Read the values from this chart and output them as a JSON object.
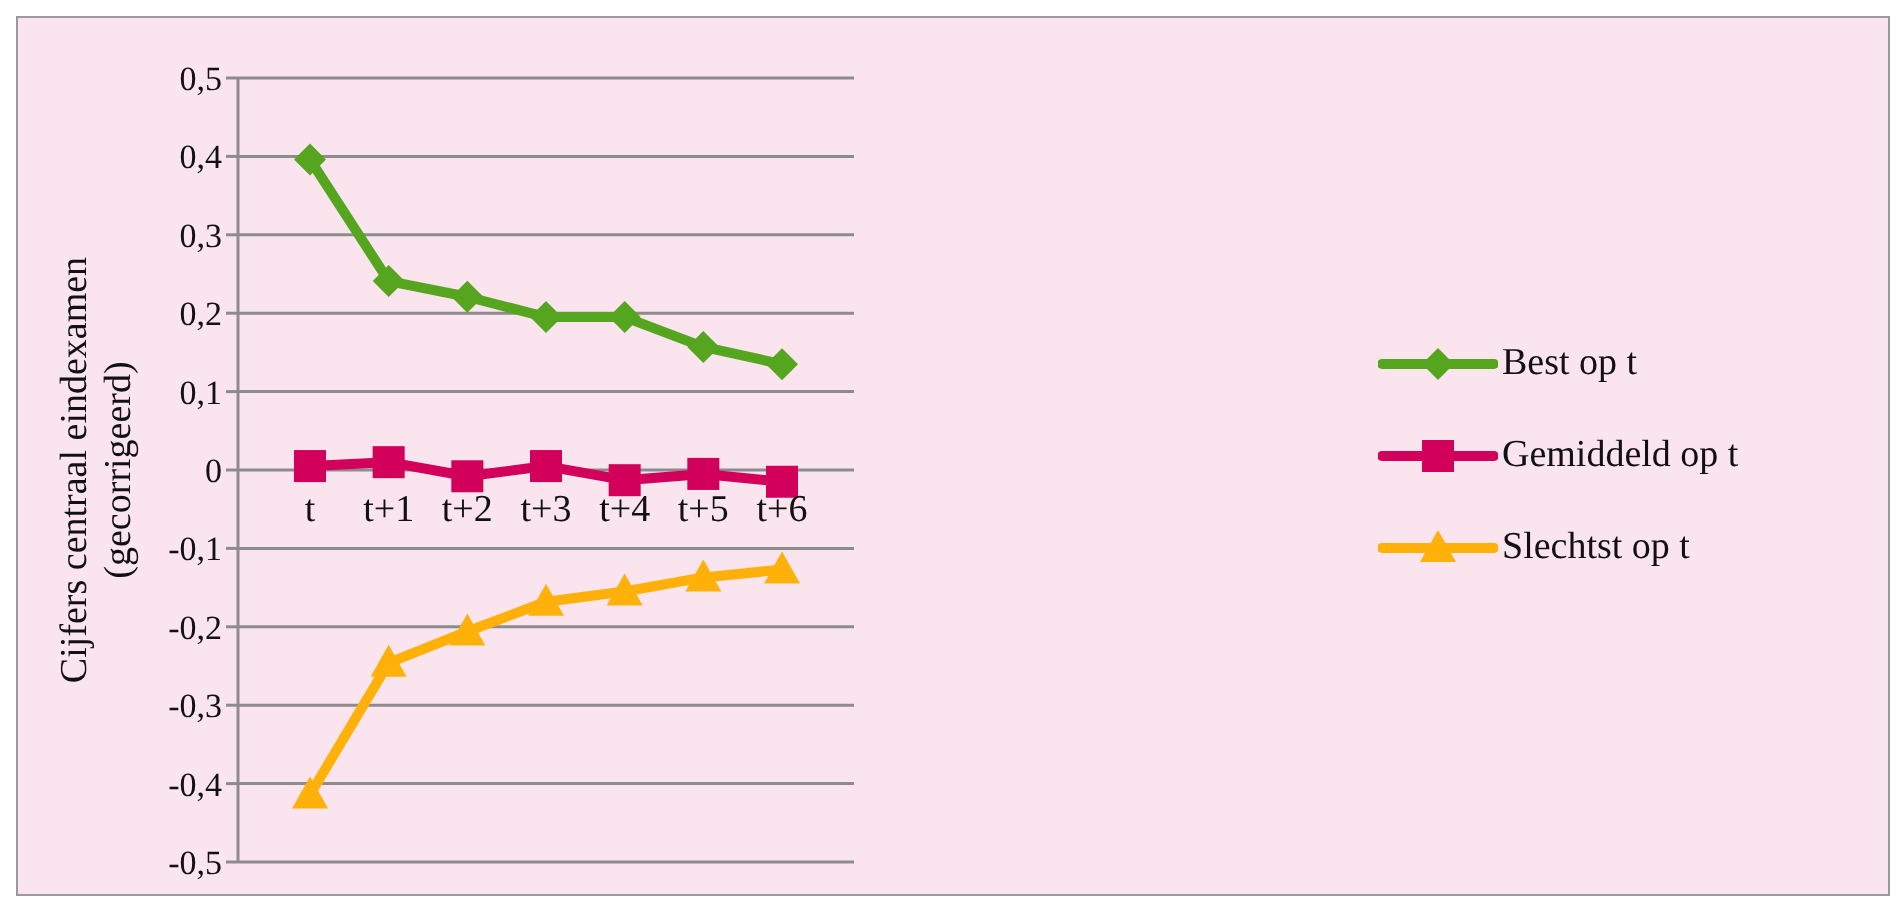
{
  "chart_data": {
    "type": "line",
    "ylabel": "Cijfers centraal eindexamen (gecorrigeerd)",
    "categories": [
      "t",
      "t+1",
      "t+2",
      "t+3",
      "t+4",
      "t+5",
      "t+6"
    ],
    "series": [
      {
        "name": "Best op t",
        "color": "#55a51f",
        "marker": "diamond",
        "values": [
          0.396,
          0.241,
          0.221,
          0.195,
          0.195,
          0.157,
          0.135
        ]
      },
      {
        "name": "Gemiddeld op t",
        "color": "#d2005a",
        "marker": "square",
        "values": [
          0.005,
          0.01,
          -0.008,
          0.005,
          -0.013,
          -0.005,
          -0.015
        ]
      },
      {
        "name": "Slechtst op t",
        "color": "#ffb10a",
        "marker": "triangle",
        "values": [
          -0.414,
          -0.246,
          -0.206,
          -0.168,
          -0.155,
          -0.137,
          -0.127
        ]
      }
    ],
    "ylim": [
      -0.5,
      0.5
    ],
    "yticks": [
      {
        "value": -0.5,
        "label": "-0,5"
      },
      {
        "value": -0.4,
        "label": "-0,4"
      },
      {
        "value": -0.3,
        "label": "-0,3"
      },
      {
        "value": -0.2,
        "label": "-0,2"
      },
      {
        "value": -0.1,
        "label": "-0,1"
      },
      0,
      {
        "value": 0.1,
        "label": "0,1"
      },
      {
        "value": 0.2,
        "label": "0,2"
      },
      {
        "value": 0.3,
        "label": "0,3"
      },
      {
        "value": 0.4,
        "label": "0,4"
      },
      {
        "value": 0.5,
        "label": "0,5"
      }
    ],
    "grid": "y",
    "legend": "right",
    "line_style": "solid"
  }
}
